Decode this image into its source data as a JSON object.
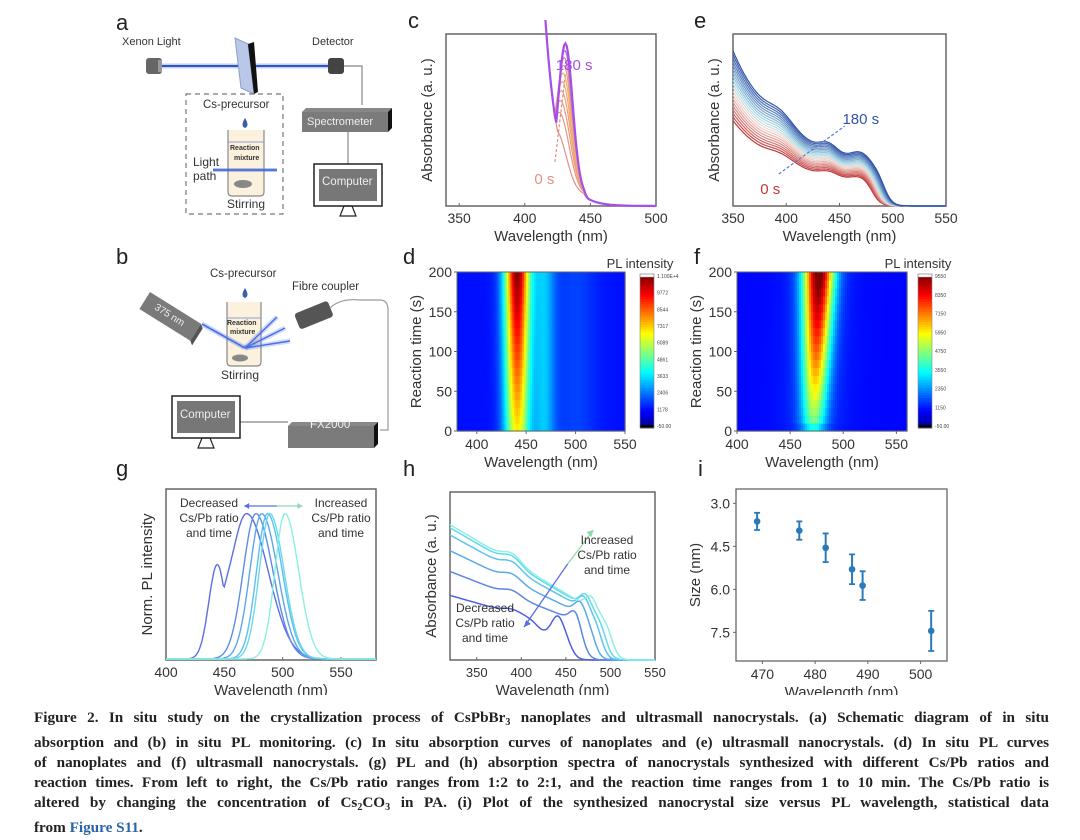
{
  "panels": {
    "a": {
      "label": "a",
      "xenon_light": "Xenon Light",
      "detector": "Detector",
      "cs_precursor": "Cs-precursor",
      "reaction_mixture_1": "Reaction",
      "reaction_mixture_2": "mixture",
      "light_path_1": "Light",
      "light_path_2": "path",
      "stirring": "Stirring",
      "spectrometer": "Spectrometer",
      "computer": "Computer"
    },
    "b": {
      "label": "b",
      "cs_precursor": "Cs-precursor",
      "laser": "375 nm",
      "fibre_coupler": "Fibre coupler",
      "reaction_mixture_1": "Reaction",
      "reaction_mixture_2": "mixture",
      "stirring": "Stirring",
      "computer": "Computer",
      "fx2000": "FX2000"
    },
    "c": {
      "label": "c"
    },
    "d": {
      "label": "d"
    },
    "e": {
      "label": "e"
    },
    "f": {
      "label": "f"
    },
    "g": {
      "label": "g"
    },
    "h": {
      "label": "h"
    },
    "i": {
      "label": "i"
    }
  },
  "chart_data": [
    {
      "id": "c",
      "type": "line",
      "title": "",
      "xlabel": "Wavelength (nm)",
      "ylabel": "Absorbance (a. u.)",
      "xlim": [
        340,
        500
      ],
      "xticks": [
        350,
        400,
        450,
        500
      ],
      "yticks": [],
      "annotations": {
        "start": "0 s",
        "end": "180 s"
      },
      "colors": {
        "start": "#e58f84",
        "mid": "#f2b36b",
        "end": "#a64ee8"
      },
      "series_count": 10,
      "peak_shift_nm": [
        424,
        431
      ],
      "series_desc": "Absorption curves over 0-180 s; excitonic peak grows from ~424 nm to ~431 nm"
    },
    {
      "id": "e",
      "type": "line",
      "title": "",
      "xlabel": "Wavelength (nm)",
      "ylabel": "Absorbance (a. u.)",
      "xlim": [
        350,
        550
      ],
      "xticks": [
        350,
        400,
        450,
        500,
        550
      ],
      "yticks": [],
      "annotations": {
        "start": "0 s",
        "end": "180 s"
      },
      "colors": {
        "start": "#c0393b",
        "mid": "#f3d9d0",
        "mid2": "#aee0ea",
        "end": "#3253a8"
      },
      "series_count": 20,
      "series_desc": "Absorption curves rising over 0-180 s with shoulders near 395, 440 and 470 nm, edge ~490 nm"
    },
    {
      "id": "d",
      "type": "heatmap",
      "title": "",
      "xlabel": "Wavelength (nm)",
      "ylabel": "Reaction time (s)",
      "xlim": [
        380,
        550
      ],
      "ylim": [
        0,
        200
      ],
      "xticks": [
        400,
        450,
        500,
        550
      ],
      "yticks": [
        0,
        50,
        100,
        150,
        200
      ],
      "colorbar": {
        "title": "PL intensity",
        "ticks": [
          "1.100E+4",
          "9772",
          "8544",
          "7317",
          "6089",
          "4861",
          "3633",
          "2406",
          "1178",
          "-50.00"
        ]
      },
      "peak_center_nm": 441,
      "peak_width_nm": 22,
      "peak_intensity_start": 7000,
      "peak_intensity_end": 11000
    },
    {
      "id": "f",
      "type": "heatmap",
      "title": "",
      "xlabel": "Wavelength (nm)",
      "ylabel": "Reaction time (s)",
      "xlim": [
        400,
        560
      ],
      "ylim": [
        0,
        200
      ],
      "xticks": [
        400,
        450,
        500,
        550
      ],
      "yticks": [
        0,
        50,
        100,
        150,
        200
      ],
      "colorbar": {
        "title": "PL intensity",
        "ticks": [
          "9550",
          "8350",
          "7150",
          "5950",
          "4750",
          "3550",
          "2350",
          "1150",
          "-50.00"
        ]
      },
      "peak_center_start_nm": 472,
      "peak_center_end_nm": 477,
      "peak_width_nm": 16,
      "peak_intensity_start": 3500,
      "peak_intensity_end": 9550
    },
    {
      "id": "g",
      "type": "line",
      "title": "",
      "xlabel": "Wavelength (nm)",
      "ylabel": "Norm. PL intensity",
      "xlim": [
        400,
        580
      ],
      "xticks": [
        400,
        450,
        500,
        550
      ],
      "yticks": [],
      "annotations": {
        "left": [
          "Decreased",
          "Cs/Pb ratio",
          "and time"
        ],
        "right": [
          "Increased",
          "Cs/Pb ratio",
          "and time"
        ]
      },
      "series": [
        {
          "name": "s1",
          "peak_nm": 469,
          "fwhm_nm": 38,
          "color": "#5b6fe0"
        },
        {
          "name": "s2",
          "peak_nm": 477,
          "fwhm_nm": 30,
          "color": "#5f8ae6"
        },
        {
          "name": "s3",
          "peak_nm": 482,
          "fwhm_nm": 28,
          "color": "#5ea5ea"
        },
        {
          "name": "s4",
          "peak_nm": 487,
          "fwhm_nm": 26,
          "color": "#5fc0ee"
        },
        {
          "name": "s5",
          "peak_nm": 489,
          "fwhm_nm": 25,
          "color": "#6bd8f0"
        },
        {
          "name": "s6",
          "peak_nm": 502,
          "fwhm_nm": 24,
          "color": "#8af0e0"
        }
      ]
    },
    {
      "id": "h",
      "type": "line",
      "title": "",
      "xlabel": "Wavelength (nm)",
      "ylabel": "Absorbance (a. u.)",
      "xlim": [
        320,
        550
      ],
      "xticks": [
        350,
        400,
        450,
        500,
        550
      ],
      "yticks": [],
      "annotations": {
        "left": [
          "Decreased",
          "Cs/Pb ratio",
          "and time"
        ],
        "right": [
          "Increased",
          "Cs/Pb ratio",
          "and time"
        ]
      },
      "series": [
        {
          "name": "s1",
          "peak_nm": 441,
          "edge_nm": 455,
          "color": "#4f5fe0"
        },
        {
          "name": "s2",
          "peak_nm": 461,
          "edge_nm": 470,
          "color": "#5c86e6"
        },
        {
          "name": "s3",
          "peak_nm": 466,
          "edge_nm": 482,
          "color": "#5ba7ec"
        },
        {
          "name": "s4",
          "peak_nm": 470,
          "edge_nm": 490,
          "color": "#5fc4ef"
        },
        {
          "name": "s5",
          "peak_nm": 472,
          "edge_nm": 495,
          "color": "#5fdcef"
        },
        {
          "name": "s6",
          "peak_nm": 478,
          "edge_nm": 502,
          "color": "#8ef0e4"
        }
      ]
    },
    {
      "id": "i",
      "type": "scatter",
      "title": "",
      "xlabel": "Wavelength (nm)",
      "ylabel": "Size (nm)",
      "xlim": [
        465,
        505
      ],
      "ylim": [
        2.5,
        8.5
      ],
      "y_inverted": true,
      "xticks": [
        470,
        480,
        490,
        500
      ],
      "yticks": [
        "3.0",
        "4.5",
        "6.0",
        "7.5"
      ],
      "color": "#2a7ab9",
      "x": [
        469,
        477,
        482,
        487,
        489,
        502
      ],
      "y": [
        3.63,
        3.95,
        4.55,
        5.3,
        5.87,
        7.45
      ],
      "err": [
        0.3,
        0.32,
        0.5,
        0.52,
        0.5,
        0.7
      ]
    }
  ],
  "caption": {
    "lines": [
      [
        "Figure 2. In situ study on the crystallization process of CsPbBr",
        "3",
        " nanoplates and ultrasmall nanocrystals. (a) Schematic diagram of in situ"
      ],
      [
        "absorption and (b) in situ PL monitoring. (c) In situ absorption curves of nanoplates and (e) ultrasmall nanocrystals. (d) In situ PL curves"
      ],
      [
        "of nanoplates and (f) ultrasmall nanocrystals. (g) PL and (h) absorption spectra of nanocrystals synthesized with different Cs/Pb ratios and"
      ],
      [
        "reaction times. From left to right, the Cs/Pb ratio ranges from 1:2 to 2:1, and the reaction time ranges from 1 to 10 min. The Cs/Pb ratio is"
      ],
      [
        "altered by changing the concentration of Cs",
        "2",
        "CO",
        "3",
        " in PA. (i) Plot of the synthesized nanocrystal size versus PL wavelength, statistical data"
      ]
    ],
    "last_prefix": "from ",
    "link": "Figure S11",
    "last_suffix": "."
  }
}
